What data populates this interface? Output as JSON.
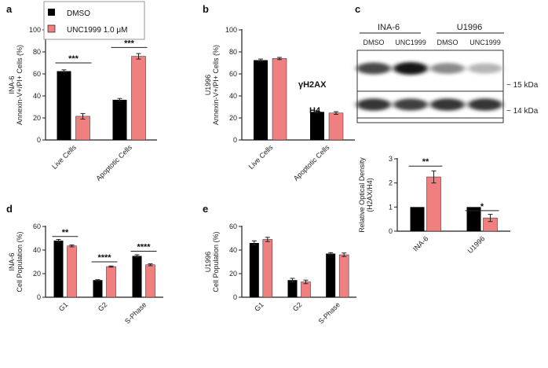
{
  "colors": {
    "dmso": "#000000",
    "unc": "#f08080",
    "axis": "#222222"
  },
  "legend": {
    "items": [
      {
        "label": "DMSO",
        "color": "#000000"
      },
      {
        "label": "UNC1999 1.0 μM",
        "color": "#f08080"
      }
    ]
  },
  "chart_data": [
    {
      "panel": "a",
      "type": "bar",
      "ylabel_line1": "INA-6",
      "ylabel_line2": "Annexin-V+/PI+ Cells (%)",
      "categories": [
        "Live Cells",
        "Apoptotic Cells"
      ],
      "series": [
        {
          "name": "DMSO",
          "values": [
            62.5,
            36.5
          ],
          "err": [
            1.2,
            1.2
          ]
        },
        {
          "name": "UNC1999 1.0 μM",
          "values": [
            21.5,
            76
          ],
          "err": [
            2.5,
            2.5
          ]
        }
      ],
      "ylim": [
        0,
        100
      ],
      "yticks": [
        0,
        20,
        40,
        60,
        80,
        100
      ],
      "significance": [
        {
          "category": 0,
          "label": "***",
          "y": 70
        },
        {
          "category": 1,
          "label": "***",
          "y": 84
        }
      ]
    },
    {
      "panel": "b",
      "type": "bar",
      "ylabel_line1": "U1996",
      "ylabel_line2": "Annexin-V+/PI+ Cells (%)",
      "categories": [
        "Live Cells",
        "Apoptotic Cells"
      ],
      "series": [
        {
          "name": "DMSO",
          "values": [
            72.5,
            25.5
          ],
          "err": [
            1.0,
            1.0
          ]
        },
        {
          "name": "UNC1999 1.0 μM",
          "values": [
            74,
            24.5
          ],
          "err": [
            1.0,
            1.2
          ]
        }
      ],
      "ylim": [
        0,
        100
      ],
      "yticks": [
        0,
        20,
        40,
        60,
        80,
        100
      ],
      "significance": []
    },
    {
      "panel": "d",
      "type": "bar",
      "ylabel_line1": "INA-6",
      "ylabel_line2": "Cell Population (%)",
      "categories": [
        "G1",
        "G2",
        "S-Phase"
      ],
      "series": [
        {
          "name": "DMSO",
          "values": [
            48,
            14.5,
            35
          ],
          "err": [
            1.0,
            0.4,
            1.0
          ]
        },
        {
          "name": "UNC1999 1.0 μM",
          "values": [
            43.5,
            26,
            27.5
          ],
          "err": [
            0.8,
            0.5,
            0.8
          ]
        }
      ],
      "ylim": [
        0,
        60
      ],
      "yticks": [
        0,
        20,
        40,
        60
      ],
      "significance": [
        {
          "category": 0,
          "label": "**",
          "y": 51.5
        },
        {
          "category": 1,
          "label": "****",
          "y": 30
        },
        {
          "category": 2,
          "label": "****",
          "y": 39
        }
      ]
    },
    {
      "panel": "e",
      "type": "bar",
      "ylabel_line1": "U1996",
      "ylabel_line2": "Cell Population (%)",
      "categories": [
        "G1",
        "G2",
        "S-Phase"
      ],
      "series": [
        {
          "name": "DMSO",
          "values": [
            46,
            14.5,
            37
          ],
          "err": [
            1.8,
            1.5,
            0.8
          ]
        },
        {
          "name": "UNC1999 1.0 μM",
          "values": [
            49,
            13,
            36
          ],
          "err": [
            1.8,
            1.5,
            1.5
          ]
        }
      ],
      "ylim": [
        0,
        60
      ],
      "yticks": [
        0,
        20,
        40,
        60
      ],
      "significance": []
    },
    {
      "panel": "c",
      "type": "bar",
      "ylabel_line1": "Relative Optical Density",
      "ylabel_line2": "(H2AX/H4)",
      "categories": [
        "INA-6",
        "U1996"
      ],
      "series": [
        {
          "name": "DMSO",
          "values": [
            1,
            1
          ],
          "err": [
            0,
            0
          ]
        },
        {
          "name": "UNC1999 1.0 μM",
          "values": [
            2.25,
            0.55
          ],
          "err": [
            0.25,
            0.15
          ]
        }
      ],
      "ylim": [
        0,
        3
      ],
      "yticks": [
        0,
        1,
        2,
        3
      ],
      "significance": [
        {
          "category": 0,
          "label": "**",
          "y": 2.7
        },
        {
          "category": 1,
          "label": "*",
          "y": 0.85
        }
      ]
    }
  ],
  "blot": {
    "panel": "c",
    "groups": [
      "INA-6",
      "U1996"
    ],
    "lanes": [
      "DMSO",
      "UNC1999",
      "DMSO",
      "UNC1999"
    ],
    "rows": [
      {
        "protein": "γH2AX",
        "kda": "~ 15 kDa",
        "intensity": [
          0.75,
          1.0,
          0.45,
          0.25
        ]
      },
      {
        "protein": "H4",
        "kda": "~ 14 kDa",
        "intensity": [
          0.85,
          0.8,
          0.85,
          0.85
        ]
      }
    ]
  }
}
